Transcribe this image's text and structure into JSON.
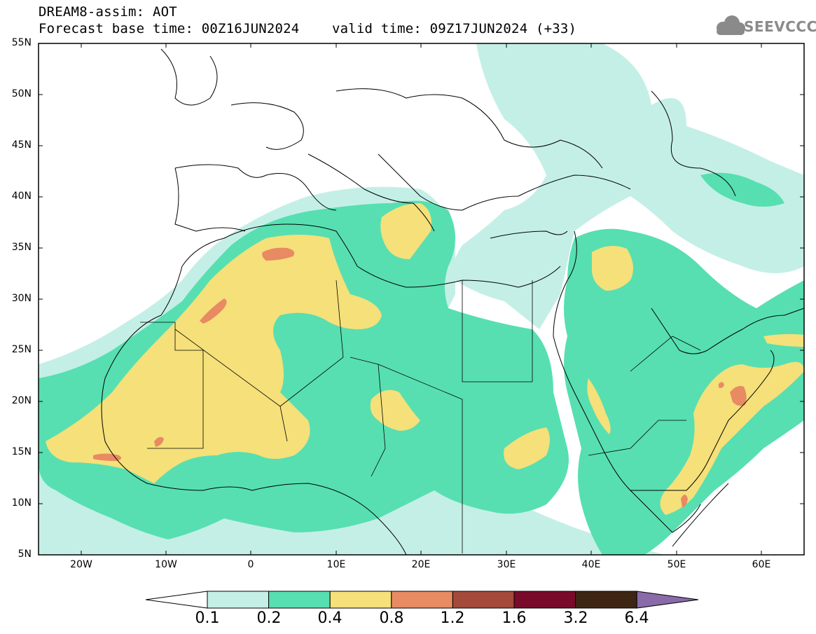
{
  "header": {
    "line1": "DREAM8-assim: AOT",
    "line2": "Forecast base time: 00Z16JUN2024    valid time: 09Z17JUN2024 (+33)"
  },
  "logo": {
    "text": "SEEVCCC",
    "icon": "cloud-icon",
    "color": "#8a8a8a"
  },
  "map": {
    "lat_labels": [
      "55N",
      "50N",
      "45N",
      "40N",
      "35N",
      "30N",
      "25N",
      "20N",
      "15N",
      "10N",
      "5N"
    ],
    "lon_labels": [
      "20W",
      "10W",
      "0",
      "10E",
      "20E",
      "30E",
      "40E",
      "50E",
      "60E"
    ],
    "lat_range": [
      5,
      55
    ],
    "lon_range": [
      -25,
      65
    ]
  },
  "colorbar": {
    "labels": [
      "0.1",
      "0.2",
      "0.4",
      "0.8",
      "1.2",
      "1.6",
      "3.2",
      "6.4"
    ],
    "colors": [
      "#ffffff",
      "#c4efe6",
      "#57dfb1",
      "#f5e07a",
      "#e88a62",
      "#a34a3a",
      "#7a0a2a",
      "#3e2614",
      "#8a6aa8"
    ]
  }
}
